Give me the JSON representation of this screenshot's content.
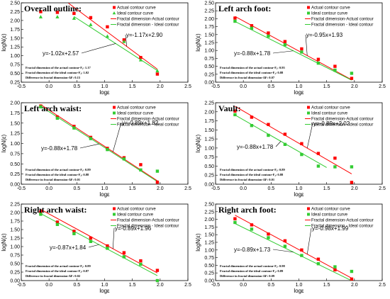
{
  "figure": {
    "legend": {
      "actual": "Actual contour curve",
      "ideal": "Ideal contour curve",
      "fit_actual": "Fractal dimension-Actual contour",
      "fit_ideal": "Fractal dimension - Ideal contour"
    },
    "colors": {
      "actual": "#ff0000",
      "ideal": "#33cc33",
      "axis": "#000000"
    }
  },
  "chart_data": [
    {
      "type": "scatter",
      "title": "Overall outline:",
      "xlabel": "logε",
      "ylabel": "logN(ε)",
      "xlim": [
        -0.5,
        2.5
      ],
      "ylim": [
        0.25,
        2.5
      ],
      "xticks": [
        "-0.5",
        "0.0",
        "0.5",
        "1.0",
        "1.5",
        "2.0",
        "2.5"
      ],
      "yticks": [
        "0.25",
        "0.50",
        "0.75",
        "1.00",
        "1.25",
        "1.50",
        "1.75",
        "2.00",
        "2.25",
        "2.50"
      ],
      "ideal_marker": "triangle",
      "series": [
        {
          "name": "Actual contour curve",
          "x": [
            -0.15,
            0.15,
            0.45,
            0.75,
            1.05,
            1.35,
            1.65,
            1.95
          ],
          "y": [
            2.25,
            2.23,
            2.2,
            2.08,
            1.82,
            1.45,
            0.95,
            0.48
          ]
        },
        {
          "name": "Ideal contour curve",
          "x": [
            -0.15,
            0.15,
            0.45,
            0.75,
            1.05,
            1.35,
            1.65,
            1.95
          ],
          "y": [
            2.1,
            2.1,
            2.06,
            1.88,
            1.55,
            1.4,
            0.88,
            0.57
          ]
        }
      ],
      "fits": {
        "actual": {
          "slope": -1.17,
          "intercept": 2.9,
          "x": [
            0.35,
            1.95
          ],
          "label": "y=-1.17x+2.90"
        },
        "ideal": {
          "slope": -1.02,
          "intercept": 2.57,
          "x": [
            0.45,
            1.95
          ],
          "label": "y=-1.02x+2.57"
        }
      },
      "notes": [
        "Fractal dimension of the actual contour-F₁: 1.17",
        "Fractal dimension of the ideal contour-F₂: 1.02",
        "Difference in fractal dimension-ΔF: 0.15"
      ]
    },
    {
      "type": "scatter",
      "title": "Left arch foot:",
      "xlabel": "logε",
      "ylabel": "logN(ε)",
      "xlim": [
        -0.5,
        2.5
      ],
      "ylim": [
        0.0,
        2.5
      ],
      "xticks": [
        "-0.5",
        "0.0",
        "0.5",
        "1.0",
        "1.5",
        "2.0",
        "2.5"
      ],
      "yticks": [
        "0.00",
        "0.25",
        "0.50",
        "0.75",
        "1.00",
        "1.25",
        "1.50",
        "1.75",
        "2.00",
        "2.25",
        "2.50"
      ],
      "ideal_marker": "square",
      "series": [
        {
          "name": "Actual contour curve",
          "x": [
            -0.15,
            0.15,
            0.45,
            0.75,
            1.05,
            1.35,
            1.65,
            1.95
          ],
          "y": [
            2.02,
            1.78,
            1.55,
            1.28,
            1.05,
            0.72,
            0.5,
            0.12
          ]
        },
        {
          "name": "Ideal contour curve",
          "x": [
            -0.15,
            0.15,
            0.45,
            0.75,
            1.05,
            1.35,
            1.65,
            1.95
          ],
          "y": [
            1.92,
            1.7,
            1.45,
            1.18,
            0.95,
            0.6,
            0.38,
            0.28
          ]
        }
      ],
      "fits": {
        "actual": {
          "slope": -0.95,
          "intercept": 1.93,
          "x": [
            -0.15,
            1.95
          ],
          "label": "y=-0.95x+1.93"
        },
        "ideal": {
          "slope": -0.88,
          "intercept": 1.78,
          "x": [
            -0.15,
            1.95
          ],
          "label": "y=-0.88x+1.78"
        }
      },
      "notes": [
        "Fractal dimension of the actual contour-F₁: 0.95",
        "Fractal dimension of the ideal contour-F₂: 0.88",
        "Difference in fractal dimension-ΔF: 0.07"
      ]
    },
    {
      "type": "scatter",
      "title": "Left arch waist:",
      "xlabel": "logε",
      "ylabel": "logN(ε)",
      "xlim": [
        -0.5,
        2.5
      ],
      "ylim": [
        0.0,
        2.0
      ],
      "xticks": [
        "-0.5",
        "0.0",
        "0.5",
        "1.0",
        "1.5",
        "2.0",
        "2.5"
      ],
      "yticks": [
        "0.00",
        "0.25",
        "0.50",
        "0.75",
        "1.00",
        "1.25",
        "1.50",
        "1.75",
        "2.00"
      ],
      "ideal_marker": "square",
      "series": [
        {
          "name": "Actual contour curve",
          "x": [
            -0.15,
            0.15,
            0.45,
            0.75,
            1.05,
            1.35,
            1.65,
            1.95
          ],
          "y": [
            1.92,
            1.65,
            1.42,
            1.15,
            0.88,
            0.65,
            0.48,
            0.05
          ]
        },
        {
          "name": "Ideal contour curve",
          "x": [
            -0.15,
            0.15,
            0.45,
            0.75,
            1.05,
            1.35,
            1.65,
            1.95
          ],
          "y": [
            1.9,
            1.62,
            1.38,
            1.12,
            0.85,
            0.62,
            0.35,
            0.32
          ]
        }
      ],
      "fits": {
        "actual": {
          "slope": -0.89,
          "intercept": 1.82,
          "x": [
            -0.15,
            1.95
          ],
          "label": "y=-0.89x+1.82"
        },
        "ideal": {
          "slope": -0.88,
          "intercept": 1.78,
          "x": [
            -0.15,
            1.95
          ],
          "label": "y=-0.88x+1.78"
        }
      },
      "notes": [
        "Fractal dimension of the actual contour-F₁: 0.89",
        "Fractal dimension of the ideal contour-F₂: 0.88",
        "Difference in fractal dimension-ΔF: 0.01"
      ]
    },
    {
      "type": "scatter",
      "title": "Vault:",
      "xlabel": "logε",
      "ylabel": "logN(ε)",
      "xlim": [
        -0.5,
        2.5
      ],
      "ylim": [
        0.0,
        2.25
      ],
      "xticks": [
        "-0.5",
        "0.0",
        "0.5",
        "1.0",
        "1.5",
        "2.0",
        "2.5"
      ],
      "yticks": [
        "0.00",
        "0.25",
        "0.50",
        "0.75",
        "1.00",
        "1.25",
        "1.50",
        "1.75",
        "2.00",
        "2.25"
      ],
      "ideal_marker": "square",
      "series": [
        {
          "name": "Actual contour curve",
          "x": [
            -0.15,
            0.15,
            0.45,
            0.75,
            1.05,
            1.35,
            1.65,
            1.95
          ],
          "y": [
            2.02,
            1.85,
            1.65,
            1.38,
            1.12,
            0.85,
            0.72,
            0.05
          ]
        },
        {
          "name": "Ideal contour curve",
          "x": [
            -0.15,
            0.15,
            0.45,
            0.75,
            1.05,
            1.35,
            1.65,
            1.95
          ],
          "y": [
            1.92,
            1.62,
            1.35,
            1.1,
            0.82,
            0.5,
            0.48,
            0.48
          ]
        }
      ],
      "fits": {
        "actual": {
          "slope": -0.89,
          "intercept": 2.02,
          "x": [
            -0.15,
            1.95
          ],
          "label": "y=-0.89x+2.02"
        },
        "ideal": {
          "slope": -0.88,
          "intercept": 1.78,
          "x": [
            -0.15,
            1.5
          ],
          "label": "y=-0.88x+1.78"
        }
      },
      "notes": [
        "Fractal dimension of the actual contour-F₁: 0.89",
        "Fractal dimension of the ideal contour-F₂: 0.88",
        "Difference in fractal dimension-ΔF: 0.01"
      ]
    },
    {
      "type": "scatter",
      "title": "Right arch waist:",
      "xlabel": "logε",
      "ylabel": "logN(ε)",
      "xlim": [
        -0.5,
        2.5
      ],
      "ylim": [
        0.0,
        2.25
      ],
      "xticks": [
        "-0.5",
        "0.0",
        "0.5",
        "1.0",
        "1.5",
        "2.0",
        "2.5"
      ],
      "yticks": [
        "0.00",
        "0.25",
        "0.50",
        "0.75",
        "1.00",
        "1.25",
        "1.50",
        "1.75",
        "2.00",
        "2.25"
      ],
      "ideal_marker": "square",
      "series": [
        {
          "name": "Actual contour curve",
          "x": [
            -0.15,
            0.15,
            0.45,
            0.75,
            1.05,
            1.35,
            1.65,
            1.95
          ],
          "y": [
            2.02,
            1.72,
            1.45,
            1.25,
            1.02,
            0.82,
            0.58,
            0.3
          ]
        },
        {
          "name": "Ideal contour curve",
          "x": [
            -0.15,
            0.15,
            0.45,
            0.75,
            1.05,
            1.35,
            1.65,
            1.95
          ],
          "y": [
            1.95,
            1.65,
            1.38,
            1.15,
            0.95,
            0.7,
            0.48,
            0.0
          ]
        }
      ],
      "fits": {
        "actual": {
          "slope": -0.89,
          "intercept": 1.96,
          "x": [
            -0.15,
            1.95
          ],
          "label": "y=-0.89x+1.96"
        },
        "ideal": {
          "slope": -0.87,
          "intercept": 1.84,
          "x": [
            -0.15,
            1.95
          ],
          "label": "y=-0.87x+1.84"
        }
      },
      "notes": [
        "Fractal dimension of the actual contour-F₁: 0.89",
        "Fractal dimension of the ideal contour-F₂: 0.87",
        "Difference in fractal dimension-ΔF: 0.02"
      ]
    },
    {
      "type": "scatter",
      "title": "Right arch foot:",
      "xlabel": "logε",
      "ylabel": "logN(ε)",
      "xlim": [
        -0.5,
        2.5
      ],
      "ylim": [
        0.0,
        2.5
      ],
      "xticks": [
        "-0.5",
        "0.0",
        "0.5",
        "1.0",
        "1.5",
        "2.0",
        "2.5"
      ],
      "yticks": [
        "0.00",
        "0.25",
        "0.50",
        "0.75",
        "1.00",
        "1.25",
        "1.50",
        "1.75",
        "2.00",
        "2.25",
        "2.50"
      ],
      "ideal_marker": "square",
      "series": [
        {
          "name": "Actual contour curve",
          "x": [
            -0.15,
            0.15,
            0.45,
            0.75,
            1.05,
            1.35,
            1.65,
            1.95
          ],
          "y": [
            2.02,
            1.82,
            1.52,
            1.3,
            1.0,
            0.7,
            0.35,
            0.05
          ]
        },
        {
          "name": "Ideal contour curve",
          "x": [
            -0.15,
            0.15,
            0.45,
            0.75,
            1.05,
            1.35,
            1.65,
            1.95
          ],
          "y": [
            1.9,
            1.68,
            1.4,
            1.12,
            0.82,
            0.55,
            0.45,
            0.3
          ]
        }
      ],
      "fits": {
        "actual": {
          "slope": -0.98,
          "intercept": 1.99,
          "x": [
            -0.15,
            1.95
          ],
          "label": "y=-0.98x+1.99"
        },
        "ideal": {
          "slope": -0.89,
          "intercept": 1.73,
          "x": [
            -0.15,
            1.95
          ],
          "label": "y=-0.89x+1.73"
        }
      },
      "notes": [
        "Fractal dimension of the actual contour-F₁: 0.98",
        "Fractal dimension of the ideal contour-F₂: 0.89",
        "Difference in fractal dimension-ΔF: 0.09"
      ]
    }
  ]
}
